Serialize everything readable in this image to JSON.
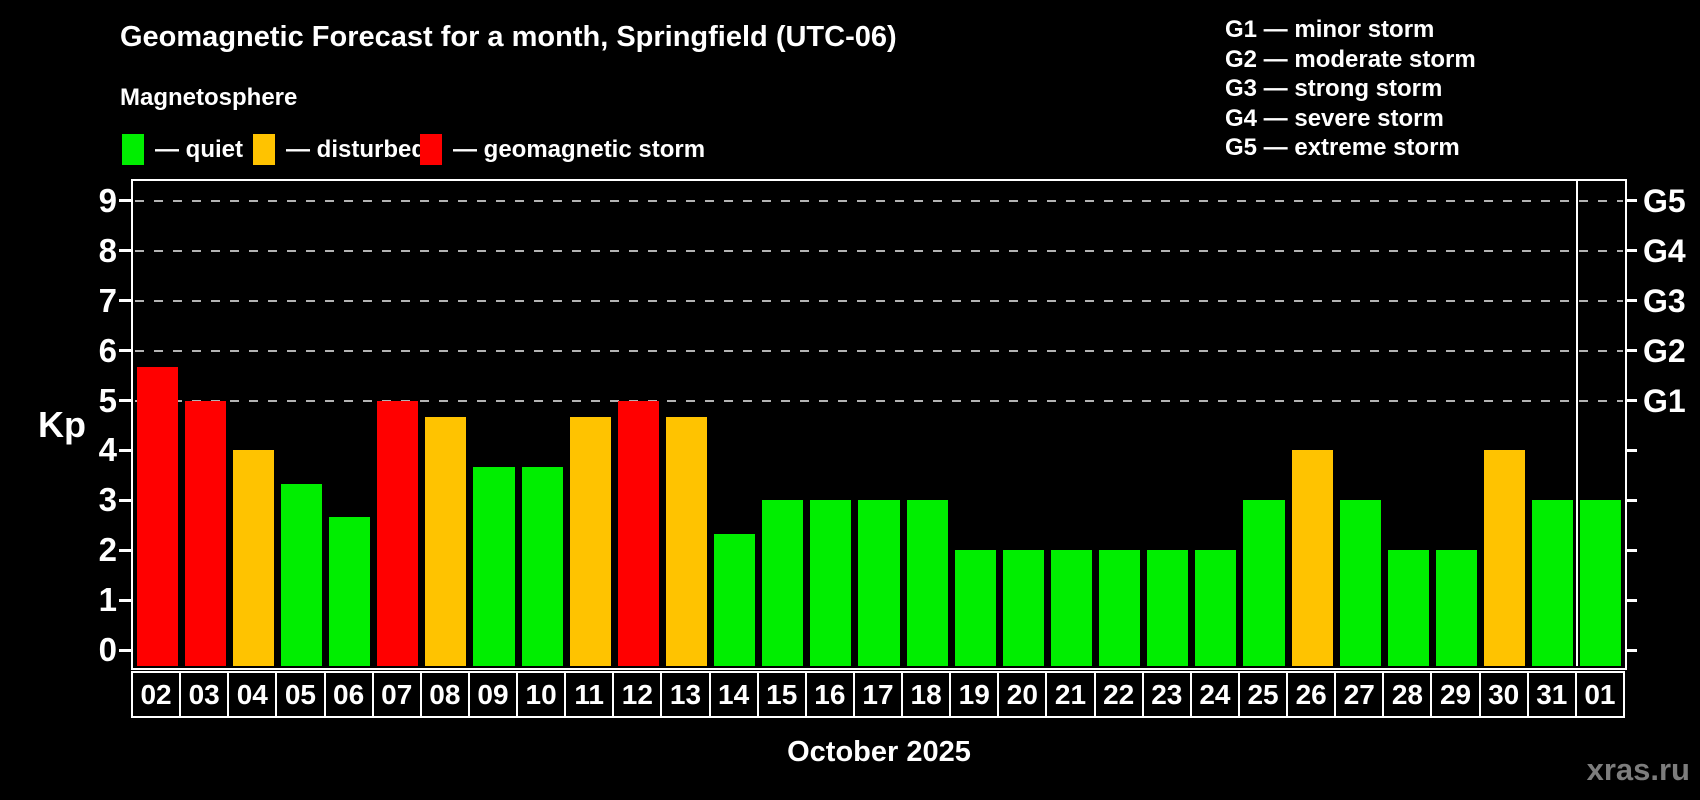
{
  "header": {
    "title": "Geomagnetic Forecast for a month, Springfield (UTC-06)",
    "subtitle": "Magnetosphere"
  },
  "legend": {
    "items": [
      {
        "key": "quiet",
        "label": "— quiet"
      },
      {
        "key": "disturbed",
        "label": "— disturbed"
      },
      {
        "key": "storm",
        "label": "— geomagnetic storm"
      }
    ]
  },
  "storm_scale": {
    "items": [
      {
        "label": "G1 — minor storm"
      },
      {
        "label": "G2 — moderate storm"
      },
      {
        "label": "G3 — strong storm"
      },
      {
        "label": "G4 — severe storm"
      },
      {
        "label": "G5 — extreme storm"
      }
    ]
  },
  "chart_data": {
    "type": "bar",
    "title": "Geomagnetic Forecast for a month, Springfield (UTC-06)",
    "xlabel": "October 2025",
    "ylabel": "Kp",
    "ylim": [
      0,
      9
    ],
    "yticks": [
      0,
      1,
      2,
      3,
      4,
      5,
      6,
      7,
      8,
      9
    ],
    "gridlines_at": [
      5,
      6,
      7,
      8,
      9
    ],
    "grid": "dashed horizontal lines at storm levels G1-G5",
    "legend_position": "top",
    "right_axis": [
      {
        "kp": 5,
        "label": "G1"
      },
      {
        "kp": 6,
        "label": "G2"
      },
      {
        "kp": 7,
        "label": "G3"
      },
      {
        "kp": 8,
        "label": "G4"
      },
      {
        "kp": 9,
        "label": "G5"
      }
    ],
    "categories": [
      "02",
      "03",
      "04",
      "05",
      "06",
      "07",
      "08",
      "09",
      "10",
      "11",
      "12",
      "13",
      "14",
      "15",
      "16",
      "17",
      "18",
      "19",
      "20",
      "21",
      "22",
      "23",
      "24",
      "25",
      "26",
      "27",
      "28",
      "29",
      "30",
      "31",
      "01"
    ],
    "values": [
      5.67,
      5,
      4,
      3.33,
      2.67,
      5,
      4.67,
      3.67,
      3.67,
      4.67,
      5,
      4.67,
      2.33,
      3,
      3,
      3,
      3,
      2,
      2,
      2,
      2,
      2,
      2,
      3,
      4,
      3,
      2,
      2,
      4,
      3,
      3
    ],
    "status": [
      "storm",
      "storm",
      "disturbed",
      "quiet",
      "quiet",
      "storm",
      "disturbed",
      "quiet",
      "quiet",
      "disturbed",
      "storm",
      "disturbed",
      "quiet",
      "quiet",
      "quiet",
      "quiet",
      "quiet",
      "quiet",
      "quiet",
      "quiet",
      "quiet",
      "quiet",
      "quiet",
      "quiet",
      "disturbed",
      "quiet",
      "quiet",
      "quiet",
      "disturbed",
      "quiet",
      "quiet"
    ],
    "colors": {
      "quiet": "#00ee00",
      "disturbed": "#ffc300",
      "storm": "#ff0000"
    },
    "month_separator_before_category": "01"
  },
  "footer": {
    "watermark": "xras.ru"
  }
}
